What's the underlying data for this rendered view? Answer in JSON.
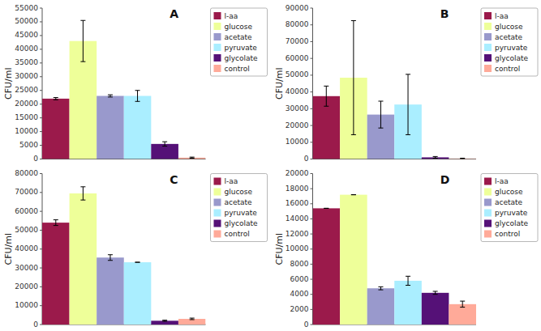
{
  "chart_data": [
    {
      "type": "bar",
      "title": "A",
      "ylabel": "CFU/ml",
      "categories": [
        "l-aa",
        "glucose",
        "acetate",
        "pyruvate",
        "glycolate",
        "control"
      ],
      "values": [
        22000,
        43000,
        23000,
        23000,
        5500,
        500
      ],
      "errors": [
        400,
        7500,
        400,
        2000,
        800,
        200
      ],
      "colors": [
        "#9b1a4b",
        "#eeff99",
        "#9999cc",
        "#aaeeff",
        "#551177",
        "#ffaa99"
      ],
      "ylim": [
        0,
        55000
      ],
      "yticks": [
        0,
        5000,
        10000,
        15000,
        20000,
        25000,
        30000,
        35000,
        40000,
        45000,
        50000,
        55000
      ],
      "legend": "right",
      "tick_labels": "y",
      "grid": false
    },
    {
      "type": "bar",
      "title": "B",
      "ylabel": "CFU/ml",
      "categories": [
        "l-aa",
        "glucose",
        "acetate",
        "pyruvate",
        "glycolate",
        "control"
      ],
      "values": [
        37500,
        48500,
        26500,
        32500,
        1000,
        300
      ],
      "errors": [
        6000,
        34000,
        8000,
        18000,
        500,
        200
      ],
      "colors": [
        "#9b1a4b",
        "#eeff99",
        "#9999cc",
        "#aaeeff",
        "#551177",
        "#ffaa99"
      ],
      "ylim": [
        0,
        90000
      ],
      "yticks": [
        0,
        10000,
        20000,
        30000,
        40000,
        50000,
        60000,
        70000,
        80000,
        90000
      ],
      "legend": "right",
      "tick_labels": "y",
      "grid": false
    },
    {
      "type": "bar",
      "title": "C",
      "ylabel": "CFU/ml",
      "categories": [
        "l-aa",
        "glucose",
        "acetate",
        "pyruvate",
        "glycolate",
        "control"
      ],
      "values": [
        54000,
        69500,
        35500,
        33000,
        2000,
        3000
      ],
      "errors": [
        1500,
        3500,
        1500,
        0,
        300,
        400
      ],
      "colors": [
        "#9b1a4b",
        "#eeff99",
        "#9999cc",
        "#aaeeff",
        "#551177",
        "#ffaa99"
      ],
      "ylim": [
        0,
        80000
      ],
      "yticks": [
        0,
        10000,
        20000,
        30000,
        40000,
        50000,
        60000,
        70000,
        80000
      ],
      "legend": "right",
      "tick_labels": "y",
      "grid": false
    },
    {
      "type": "bar",
      "title": "D",
      "ylabel": "CFU/ml",
      "categories": [
        "l-aa",
        "glucose",
        "acetate",
        "pyruvate",
        "glycolate",
        "control"
      ],
      "values": [
        15400,
        17200,
        4800,
        5800,
        4200,
        2700
      ],
      "errors": [
        0,
        0,
        200,
        600,
        200,
        400
      ],
      "colors": [
        "#9b1a4b",
        "#eeff99",
        "#9999cc",
        "#aaeeff",
        "#551177",
        "#ffaa99"
      ],
      "ylim": [
        0,
        20000
      ],
      "yticks": [
        0,
        2000,
        4000,
        6000,
        8000,
        10000,
        12000,
        14000,
        16000,
        18000,
        20000
      ],
      "legend": "right",
      "tick_labels": "y",
      "grid": false
    }
  ]
}
